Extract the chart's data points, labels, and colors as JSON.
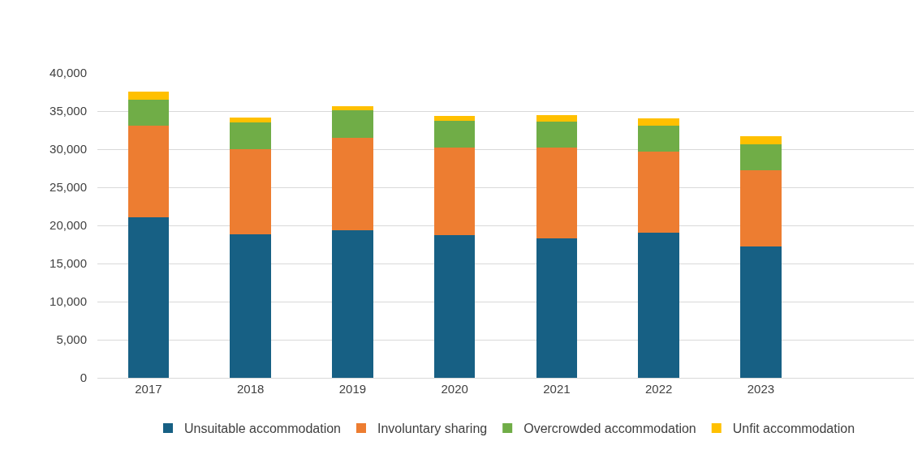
{
  "chart_data": {
    "type": "bar",
    "stacked": true,
    "categories": [
      "2017",
      "2018",
      "2019",
      "2020",
      "2021",
      "2022",
      "2023",
      null
    ],
    "series": [
      {
        "name": "Unsuitable accommodation",
        "color": "#176084",
        "values": [
          21100,
          18870,
          19400,
          18750,
          18300,
          19090,
          17280,
          null
        ]
      },
      {
        "name": "Involuntary sharing",
        "color": "#ed7d31",
        "values": [
          11950,
          11130,
          12070,
          11480,
          11930,
          10570,
          10000,
          null
        ]
      },
      {
        "name": "Overcrowded accommodation",
        "color": "#70ad47",
        "values": [
          3470,
          3510,
          3620,
          3470,
          3350,
          3470,
          3360,
          null
        ]
      },
      {
        "name": "Unfit accommodation",
        "color": "#ffc000",
        "values": [
          1020,
          600,
          530,
          640,
          910,
          870,
          1060,
          null
        ]
      }
    ],
    "ylim": [
      0,
      40000
    ],
    "yticks": [
      {
        "value": 0,
        "label": "0"
      },
      {
        "value": 5000,
        "label": "5,000"
      },
      {
        "value": 10000,
        "label": "10,000"
      },
      {
        "value": 15000,
        "label": "15,000"
      },
      {
        "value": 20000,
        "label": "20,000"
      },
      {
        "value": 25000,
        "label": "25,000"
      },
      {
        "value": 30000,
        "label": "30,000"
      },
      {
        "value": 35000,
        "label": "35,000"
      },
      {
        "value": 40000,
        "label": "40,000"
      }
    ],
    "grid": "y",
    "legend": "bottom"
  }
}
